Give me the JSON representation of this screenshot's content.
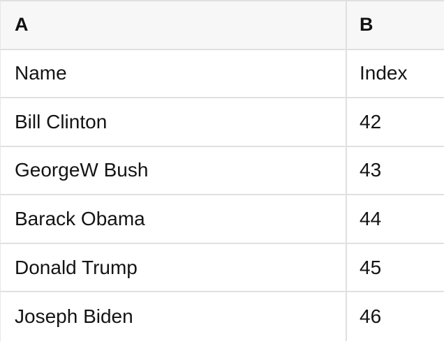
{
  "table": {
    "column_headers": [
      {
        "label": "A"
      },
      {
        "label": "B"
      }
    ],
    "rows": [
      {
        "cells": [
          "Name",
          "Index"
        ]
      },
      {
        "cells": [
          "Bill Clinton",
          "42"
        ]
      },
      {
        "cells": [
          "GeorgeW Bush",
          "43"
        ]
      },
      {
        "cells": [
          "Barack Obama",
          "44"
        ]
      },
      {
        "cells": [
          "Donald Trump",
          "45"
        ]
      },
      {
        "cells": [
          "Joseph Biden",
          "46"
        ]
      }
    ]
  },
  "colors": {
    "header_background": "#f7f7f7",
    "grid_border": "#e0e0e0",
    "text": "#141414"
  }
}
